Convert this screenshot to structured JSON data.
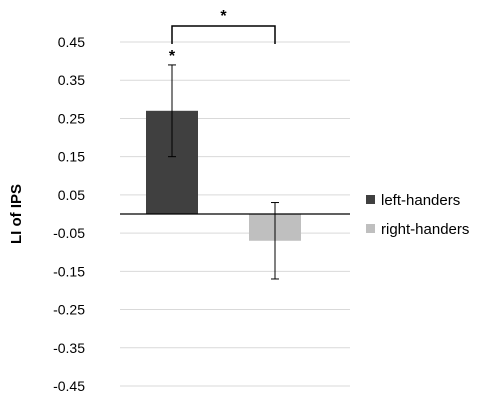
{
  "chart_data": {
    "type": "bar",
    "title": "",
    "xlabel": "",
    "ylabel": "LI of IPS",
    "ylim": [
      -0.45,
      0.45
    ],
    "yticks": [
      0.45,
      0.35,
      0.25,
      0.15,
      0.05,
      -0.05,
      -0.15,
      -0.25,
      -0.35,
      -0.45
    ],
    "ytick_labels": [
      "0.45",
      "0.35",
      "0.25",
      "0.15",
      "0.05",
      "-0.05",
      "-0.15",
      "-0.25",
      "-0.35",
      "-0.45"
    ],
    "grid": true,
    "legend_position": "right",
    "series": [
      {
        "name": "left-handers",
        "value": 0.27,
        "error": 0.12,
        "color": "#404040",
        "annotation": "*"
      },
      {
        "name": "right-handers",
        "value": -0.07,
        "error": 0.1,
        "color": "#bfbfbf",
        "annotation": ""
      }
    ],
    "bracket_annotation": "*"
  }
}
